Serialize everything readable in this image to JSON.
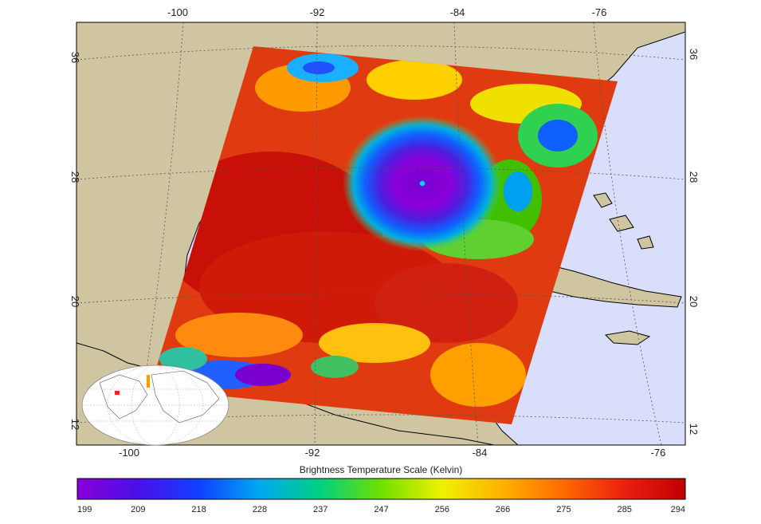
{
  "map": {
    "longitude_ticks_top": [
      "-100",
      "-92",
      "-84",
      "-76"
    ],
    "longitude_ticks_bottom": [
      "-100",
      "-92",
      "-84",
      "-76"
    ],
    "latitude_ticks_left": [
      "36",
      "28",
      "20",
      "12"
    ],
    "latitude_ticks_right": [
      "36",
      "28",
      "20",
      "12"
    ],
    "colors": {
      "land": "#cfc5a0",
      "ocean": "#d9defa",
      "frame": "#000000"
    }
  },
  "colorbar": {
    "title": "Brightness Temperature Scale (Kelvin)",
    "tick_labels": [
      "199",
      "209",
      "218",
      "228",
      "237",
      "247",
      "256",
      "266",
      "275",
      "285",
      "294"
    ],
    "gradient_colors": [
      "#8a00d8",
      "#4a10e8",
      "#1040ff",
      "#00a8f0",
      "#00d080",
      "#70e000",
      "#f0f000",
      "#ffb000",
      "#ff6a00",
      "#e82010",
      "#c00000"
    ]
  },
  "inset": {
    "icon": "world-locator-globe"
  }
}
